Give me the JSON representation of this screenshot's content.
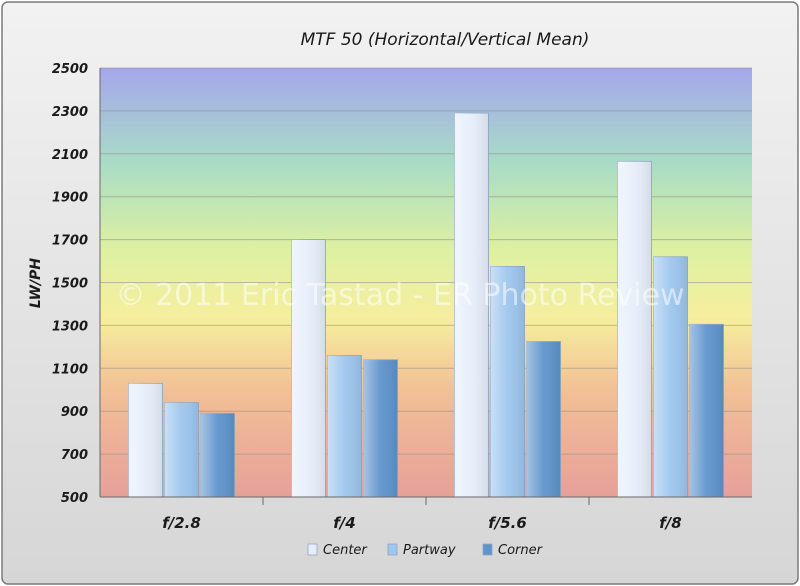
{
  "chart_data": {
    "type": "bar",
    "title": "MTF 50 (Horizontal/Vertical Mean)",
    "ylabel": "LW/PH",
    "xlabel": "",
    "categories": [
      "f/2.8",
      "f/4",
      "f/5.6",
      "f/8"
    ],
    "series": [
      {
        "name": "Center",
        "values": [
          1030,
          1700,
          2290,
          2065
        ],
        "color": "#e6eefa"
      },
      {
        "name": "Partway",
        "values": [
          940,
          1160,
          1575,
          1620
        ],
        "color": "#9ec6ee"
      },
      {
        "name": "Corner",
        "values": [
          890,
          1140,
          1225,
          1305
        ],
        "color": "#5f94cc"
      }
    ],
    "ylim": [
      500,
      2500
    ],
    "yticks": [
      500,
      700,
      900,
      1100,
      1300,
      1500,
      1700,
      1900,
      2100,
      2300,
      2500
    ],
    "grid": true,
    "legend_position": "bottom-center",
    "watermark": "© 2011 Eric Tastad - ER Photo Review",
    "background_gradient": [
      "#a6a6ec",
      "#a8dcc6",
      "#ddf0a2",
      "#f6ef9e",
      "#f2c096",
      "#e6a09a"
    ]
  }
}
